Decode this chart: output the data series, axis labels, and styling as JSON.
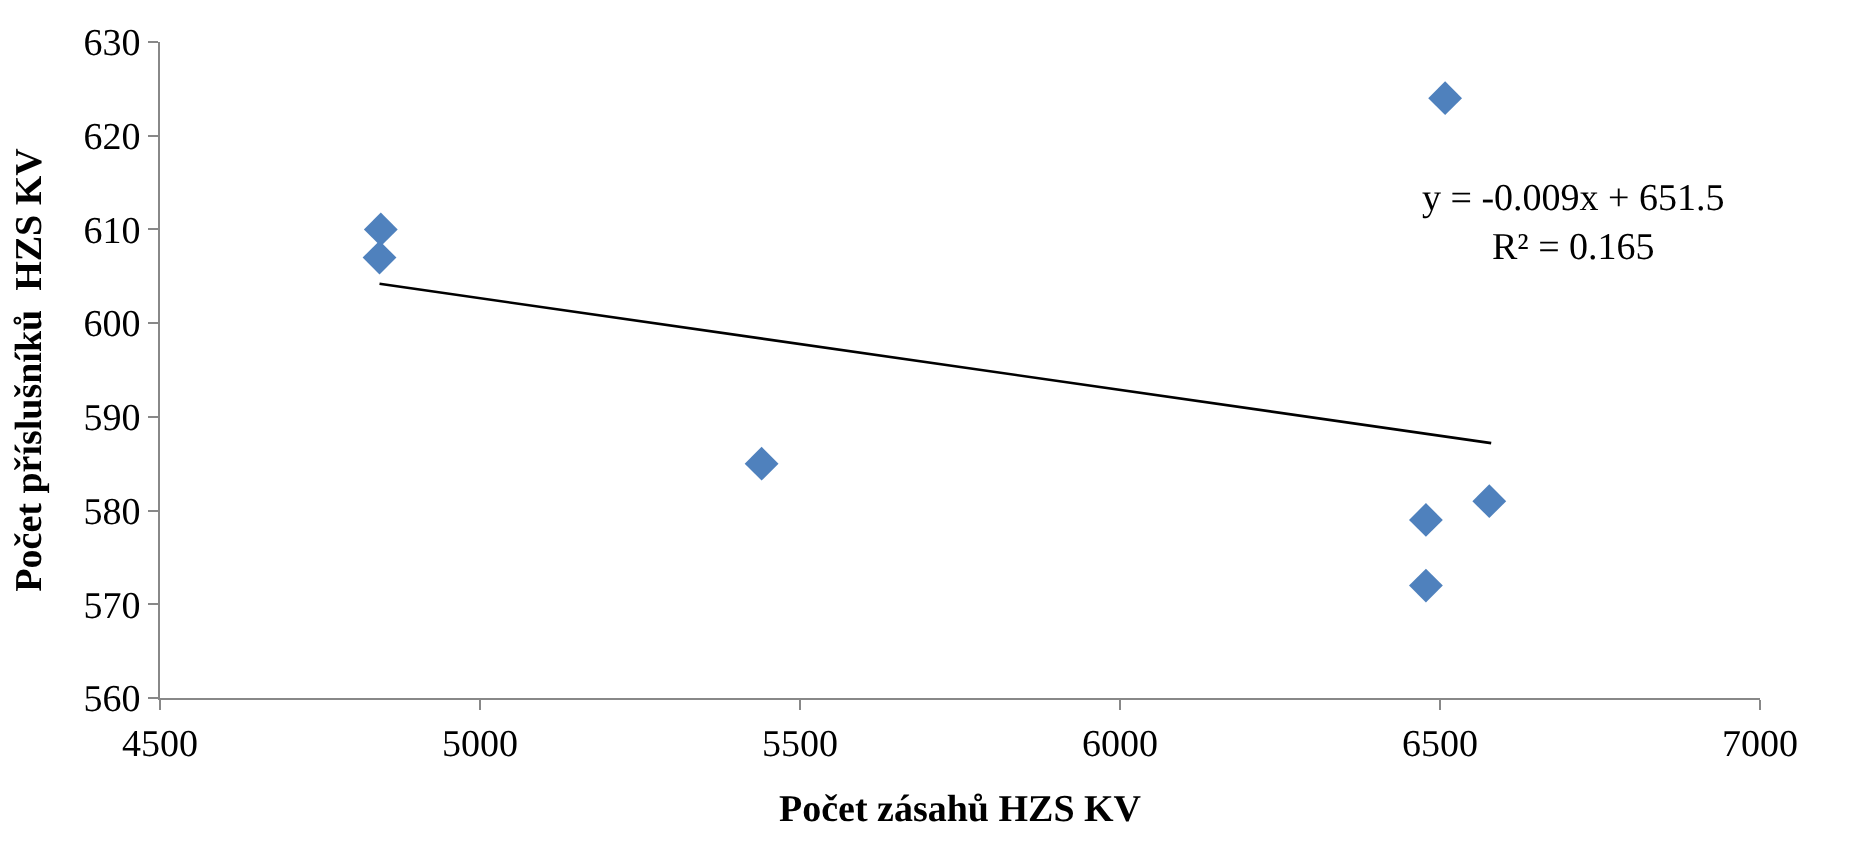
{
  "chart_data": {
    "type": "scatter",
    "xlabel": "Počet zásahů HZS KV",
    "ylabel": "Počet příslušníků  HZS KV",
    "series": [
      {
        "color": "#4f81bd",
        "marker": "diamond",
        "x": [
          4845,
          4843,
          5440,
          6508,
          6478,
          6478,
          6577
        ],
        "values": [
          610,
          607,
          585,
          624,
          579,
          572,
          581
        ]
      },
      {
        "type": "line",
        "color": "#000000",
        "marker": "none",
        "x": [
          4843,
          6580
        ],
        "values": [
          604.2,
          587.2
        ]
      }
    ],
    "annotations": [
      "y = -0.009x + 651.5\nR² = 0.165"
    ],
    "xlim": [
      4500,
      7000
    ],
    "xticks": [
      4500,
      5000,
      5500,
      6000,
      6500,
      7000
    ],
    "ylim": [
      560,
      630
    ],
    "yticks": [
      560,
      570,
      580,
      590,
      600,
      610,
      620,
      630
    ],
    "legend": false,
    "line_style": "solid"
  }
}
